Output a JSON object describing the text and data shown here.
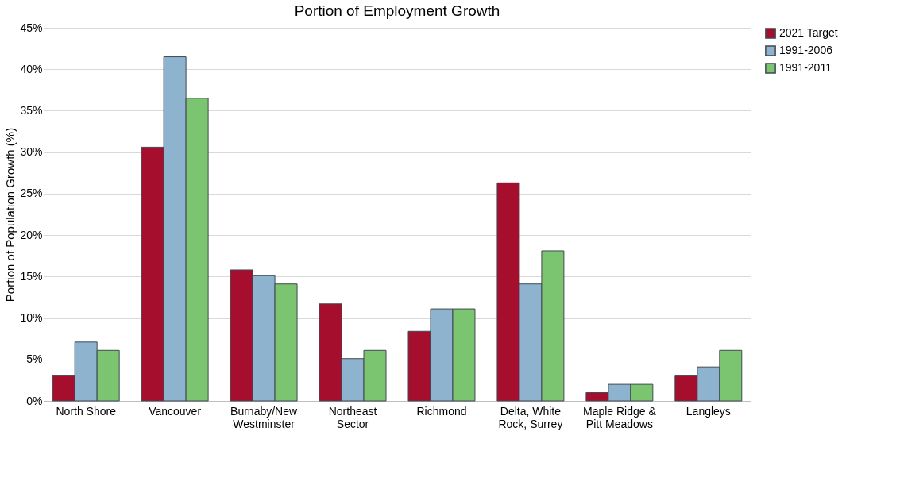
{
  "chart_data": {
    "type": "bar",
    "title": "Portion of Employment Growth",
    "ylabel": "Portion of Population Growth (%)",
    "categories": [
      "North Shore",
      "Vancouver",
      "Burnaby/New Westminster",
      "Northeast Sector",
      "Richmond",
      "Delta, White Rock, Surrey",
      "Maple Ridge & Pitt Meadows",
      "Langleys"
    ],
    "series": [
      {
        "name": "2021 Target",
        "color": "#a50f2d",
        "values": [
          3.1,
          30.6,
          15.8,
          11.7,
          8.4,
          26.3,
          1.0,
          3.1
        ]
      },
      {
        "name": "1991-2006",
        "color": "#8db3cf",
        "values": [
          7.1,
          41.5,
          15.1,
          5.1,
          11.1,
          14.1,
          2.0,
          4.1
        ]
      },
      {
        "name": "1991-2011",
        "color": "#7cc570",
        "values": [
          6.1,
          36.5,
          14.1,
          6.1,
          11.1,
          18.1,
          2.0,
          6.1
        ]
      }
    ],
    "ylim": [
      0,
      45
    ],
    "yticks": [
      {
        "value": 0,
        "label": "0%"
      },
      {
        "value": 5,
        "label": "5%"
      },
      {
        "value": 10,
        "label": "10%"
      },
      {
        "value": 15,
        "label": "15%"
      },
      {
        "value": 20,
        "label": "20%"
      },
      {
        "value": 25,
        "label": "25%"
      },
      {
        "value": 30,
        "label": "30%"
      },
      {
        "value": 35,
        "label": "35%"
      },
      {
        "value": 40,
        "label": "40%"
      },
      {
        "value": 45,
        "label": "45%"
      }
    ],
    "grid": "y",
    "legend": "right"
  }
}
